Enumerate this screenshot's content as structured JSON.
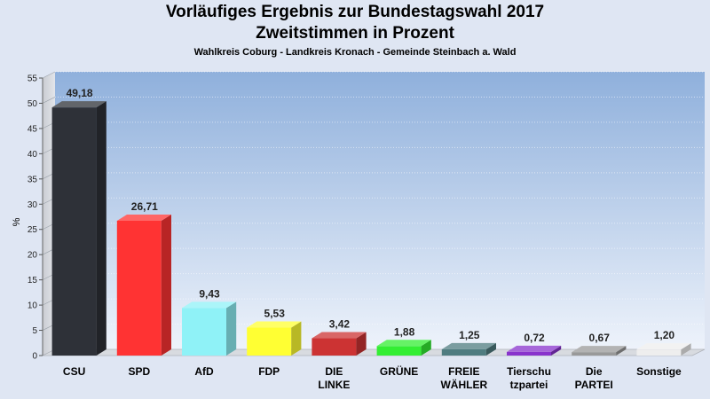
{
  "title": "Vorläufiges Ergebnis zur Bundestagswahl 2017",
  "subtitle": "Zweitstimmen in Prozent",
  "caption": "Wahlkreis Coburg - Landkreis Kronach - Gemeinde Steinbach a. Wald",
  "chart_data": {
    "type": "bar",
    "title": "Vorläufiges Ergebnis zur Bundestagswahl 2017",
    "subtitle": "Zweitstimmen in Prozent",
    "ylabel": "%",
    "ylim": [
      0,
      55
    ],
    "yticks": [
      0,
      5,
      10,
      15,
      20,
      25,
      30,
      35,
      40,
      45,
      50,
      55
    ],
    "grid": true,
    "categories": [
      [
        "CSU"
      ],
      [
        "SPD"
      ],
      [
        "AfD"
      ],
      [
        "FDP"
      ],
      [
        "DIE",
        "LINKE"
      ],
      [
        "GRÜNE"
      ],
      [
        "FREIE",
        "WÄHLER"
      ],
      [
        "Tierschu",
        "tzpartei"
      ],
      [
        "Die",
        "PARTEI"
      ],
      [
        "Sonstige"
      ]
    ],
    "values": [
      49.18,
      26.71,
      9.43,
      5.53,
      3.42,
      1.88,
      1.25,
      0.72,
      0.67,
      1.2
    ],
    "value_labels": [
      "49,18",
      "26,71",
      "9,43",
      "5,53",
      "3,42",
      "1,88",
      "1,25",
      "0,72",
      "0,67",
      "1,20"
    ],
    "colors": [
      "#2e3138",
      "#ff3333",
      "#8ff2f7",
      "#ffff33",
      "#cc3333",
      "#33ee33",
      "#4f7c80",
      "#8833cc",
      "#999999",
      "#eeeeee"
    ]
  }
}
